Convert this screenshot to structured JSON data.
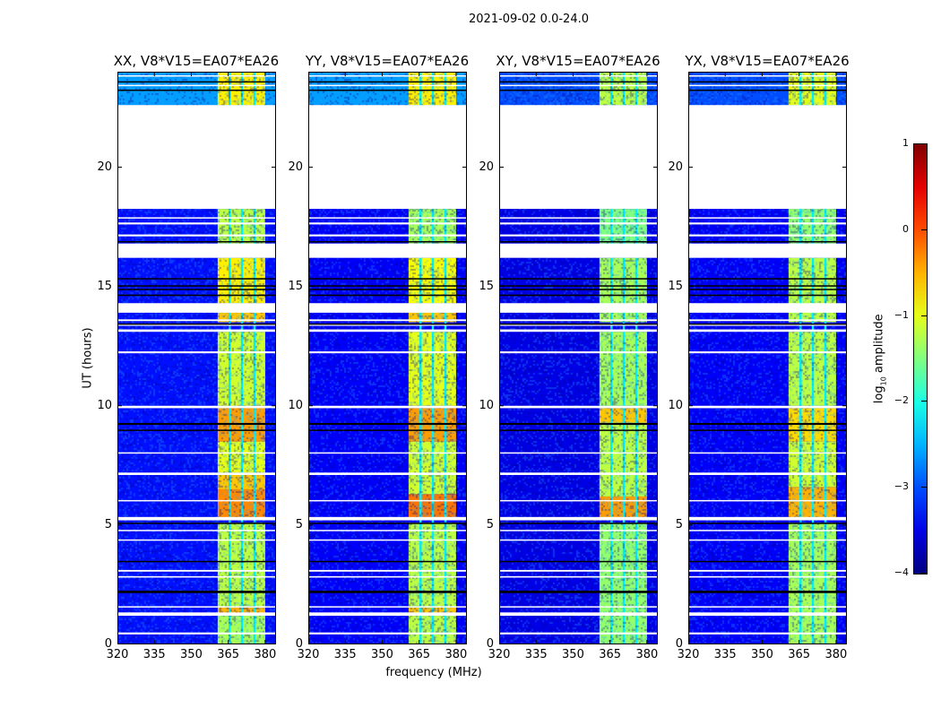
{
  "chart_data": {
    "type": "heatmap",
    "title": "2021-09-02 0.0-24.0",
    "xlabel": "frequency (MHz)",
    "ylabel": "UT (hours)",
    "xlim": [
      320,
      384.4
    ],
    "ylim": [
      0,
      24
    ],
    "xticks": [
      320,
      335,
      350,
      365,
      380
    ],
    "yticks": [
      0,
      5,
      10,
      15,
      20
    ],
    "colorbar": {
      "label": "log10 amplitude",
      "label_main": "log",
      "label_sub": "10",
      "label_rest": " amplitude",
      "range": [
        -4,
        1
      ],
      "ticks": [
        1,
        0,
        -1,
        -2,
        -3,
        -4
      ],
      "tick_labels": [
        "1",
        "0",
        "−1",
        "−2",
        "−3",
        "−4"
      ],
      "colormap": "jet"
    },
    "band": {
      "f0": 360.7,
      "f1": 380.0,
      "channel_edges": [
        365.5,
        370.5,
        375.6
      ],
      "channel_edge_value": -2.2
    },
    "flagged_times": [
      [
        0.42,
        0.5
      ],
      [
        1.2,
        1.34
      ],
      [
        1.55,
        1.6
      ],
      [
        2.8,
        2.86
      ],
      [
        3.05,
        3.12
      ],
      [
        4.35,
        4.4
      ],
      [
        4.75,
        4.8
      ],
      [
        5.2,
        5.34
      ],
      [
        6.0,
        6.05
      ],
      [
        7.1,
        7.2
      ],
      [
        8.0,
        8.05
      ],
      [
        9.9,
        10.0
      ],
      [
        12.2,
        12.28
      ],
      [
        13.1,
        13.2
      ],
      [
        13.35,
        13.42
      ],
      [
        13.55,
        13.62
      ],
      [
        13.9,
        14.3
      ],
      [
        16.2,
        16.8
      ],
      [
        17.1,
        17.18
      ],
      [
        17.6,
        17.68
      ],
      [
        17.85,
        17.9
      ],
      [
        18.25,
        22.6
      ],
      [
        23.4,
        23.45
      ],
      [
        23.8,
        23.85
      ]
    ],
    "zero_times": [
      [
        2.15,
        2.25
      ],
      [
        3.45,
        3.5
      ],
      [
        5.05,
        5.1
      ],
      [
        8.95,
        9.0
      ],
      [
        9.2,
        9.28
      ],
      [
        13.4,
        13.45
      ],
      [
        14.6,
        14.66
      ],
      [
        14.85,
        14.9
      ],
      [
        15.0,
        15.05
      ],
      [
        15.3,
        15.35
      ],
      [
        16.85,
        16.9
      ],
      [
        23.2,
        23.25
      ],
      [
        23.55,
        23.6
      ]
    ],
    "panels": [
      {
        "title": "XX, V8*V15=EA07*EA26",
        "background": [
          [
            0,
            22.6,
            -3.3
          ],
          [
            22.6,
            24,
            -2.6
          ]
        ],
        "band_rows": [
          [
            0,
            1.2,
            -1.3
          ],
          [
            1.2,
            1.55,
            -0.5
          ],
          [
            1.55,
            5.1,
            -1.2
          ],
          [
            5.3,
            6.5,
            -0.3
          ],
          [
            6.5,
            7.2,
            -0.6
          ],
          [
            7.2,
            8.5,
            -1.0
          ],
          [
            8.5,
            10,
            -0.4
          ],
          [
            10,
            13.1,
            -1.1
          ],
          [
            13.5,
            14.3,
            -0.6
          ],
          [
            14.3,
            16.2,
            -0.8
          ],
          [
            16.8,
            18.25,
            -1.2
          ],
          [
            22.6,
            24,
            -0.8
          ]
        ]
      },
      {
        "title": "YY, V8*V15=EA07*EA26",
        "background": [
          [
            0,
            22.6,
            -3.4
          ],
          [
            22.6,
            24,
            -2.6
          ]
        ],
        "band_rows": [
          [
            0,
            1.2,
            -1.2
          ],
          [
            1.2,
            1.55,
            -0.6
          ],
          [
            1.55,
            5.1,
            -1.2
          ],
          [
            5.3,
            6.3,
            -0.2
          ],
          [
            6.3,
            8.5,
            -1.1
          ],
          [
            8.5,
            9.9,
            -0.4
          ],
          [
            10,
            13.1,
            -1.0
          ],
          [
            13.5,
            14.3,
            -0.6
          ],
          [
            14.3,
            16.2,
            -0.9
          ],
          [
            16.8,
            18.25,
            -1.3
          ],
          [
            22.6,
            24,
            -0.8
          ]
        ]
      },
      {
        "title": "XY, V8*V15=EA07*EA26",
        "background": [
          [
            0,
            22.6,
            -3.5
          ],
          [
            22.6,
            24,
            -3.0
          ]
        ],
        "band_rows": [
          [
            0,
            5.1,
            -1.4
          ],
          [
            5.3,
            6.2,
            -0.4
          ],
          [
            6.2,
            9.3,
            -1.2
          ],
          [
            9.3,
            9.9,
            -0.6
          ],
          [
            10,
            13.1,
            -1.3
          ],
          [
            13.5,
            16.2,
            -1.3
          ],
          [
            16.8,
            18.25,
            -1.5
          ],
          [
            22.6,
            24,
            -1.2
          ]
        ]
      },
      {
        "title": "YX, V8*V15=EA07*EA26",
        "background": [
          [
            0,
            22.6,
            -3.4
          ],
          [
            22.6,
            24,
            -3.0
          ]
        ],
        "band_rows": [
          [
            0,
            5.1,
            -1.3
          ],
          [
            5.3,
            6.6,
            -0.5
          ],
          [
            6.6,
            8.5,
            -1.1
          ],
          [
            8.5,
            9.9,
            -0.7
          ],
          [
            10,
            13.1,
            -1.2
          ],
          [
            13.5,
            16.2,
            -1.2
          ],
          [
            16.8,
            18.25,
            -1.4
          ],
          [
            22.6,
            24,
            -1.0
          ]
        ]
      }
    ]
  }
}
